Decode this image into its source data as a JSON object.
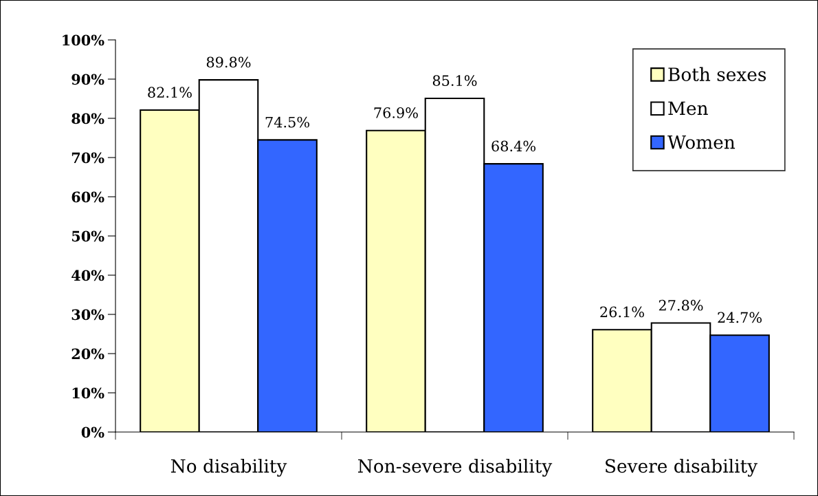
{
  "chart_data": {
    "type": "bar",
    "categories": [
      "No disability",
      "Non-severe disability",
      "Severe disability"
    ],
    "series": [
      {
        "name": "Both sexes",
        "color": "#ffffc0",
        "values": [
          82.1,
          76.9,
          26.1
        ],
        "value_labels": [
          "82.1%",
          "76.9%",
          "26.1%"
        ]
      },
      {
        "name": "Men",
        "color": "#ffffff",
        "values": [
          89.8,
          85.1,
          27.8
        ],
        "value_labels": [
          "89.8%",
          "85.1%",
          "27.8%"
        ]
      },
      {
        "name": "Women",
        "color": "#3366ff",
        "values": [
          74.5,
          68.4,
          24.7
        ],
        "value_labels": [
          "74.5%",
          "68.4%",
          "24.7%"
        ]
      }
    ],
    "ylim": [
      0,
      100
    ],
    "yticks": [
      {
        "value": 0,
        "label": "0%"
      },
      {
        "value": 10,
        "label": "10%"
      },
      {
        "value": 20,
        "label": "20%"
      },
      {
        "value": 30,
        "label": "30%"
      },
      {
        "value": 40,
        "label": "40%"
      },
      {
        "value": 50,
        "label": "50%"
      },
      {
        "value": 60,
        "label": "60%"
      },
      {
        "value": 70,
        "label": "70%"
      },
      {
        "value": 80,
        "label": "80%"
      },
      {
        "value": 90,
        "label": "90%"
      },
      {
        "value": 100,
        "label": "100%"
      }
    ],
    "legend": "top right",
    "grid": false
  }
}
